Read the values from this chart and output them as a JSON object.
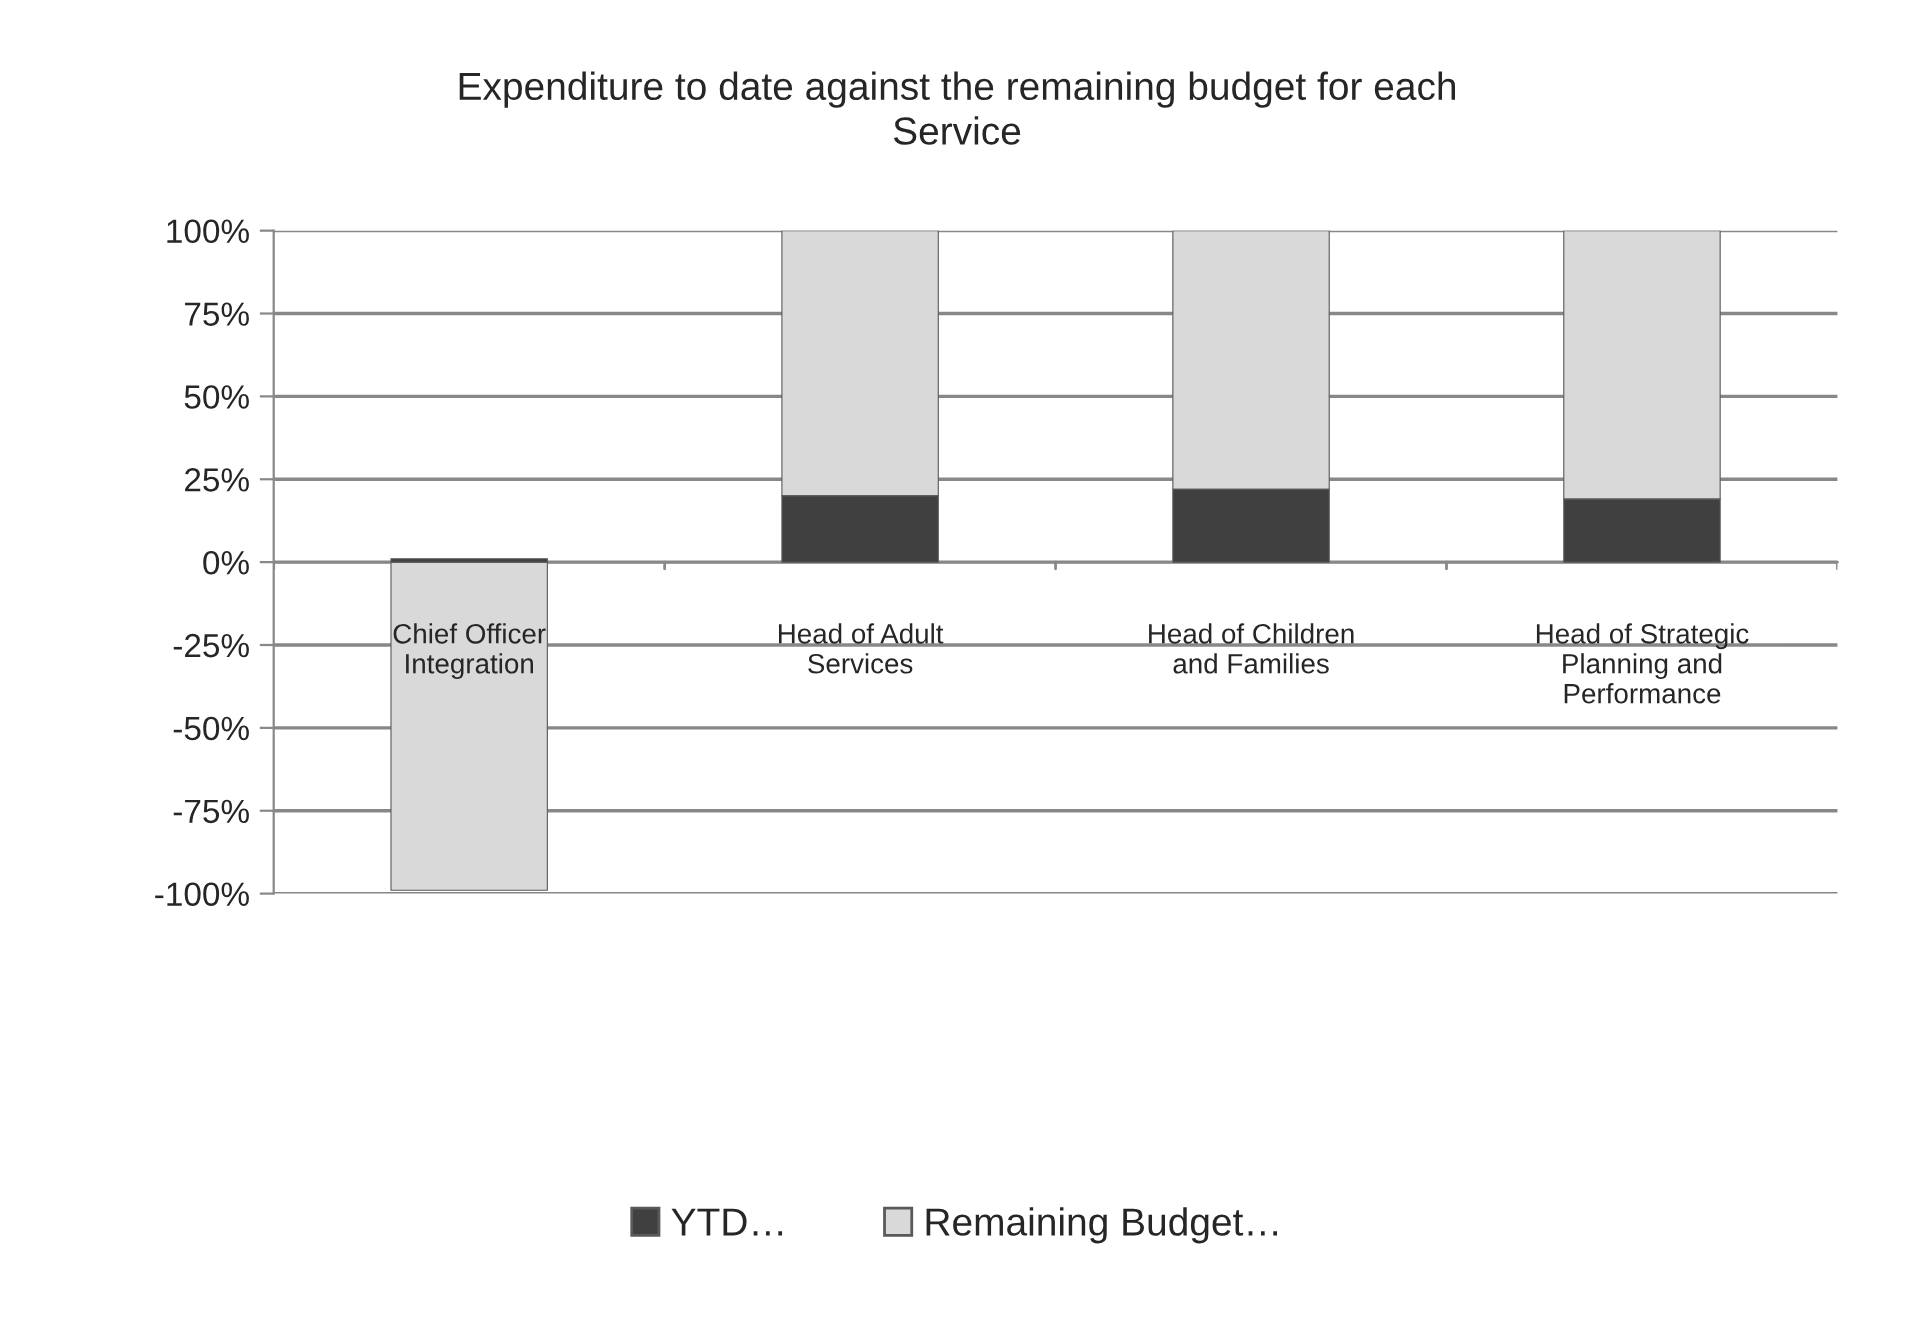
{
  "chart_data": {
    "type": "bar",
    "title": "Expenditure to date against the remaining budget for each Service",
    "categories": [
      "Chief Officer Integration",
      "Head of Adult Services",
      "Head of Children and Families",
      "Head of Strategic Planning and Performance"
    ],
    "series": [
      {
        "name": "YTD…",
        "color": "#404040",
        "values": [
          1,
          20,
          22,
          19
        ]
      },
      {
        "name": "Remaining Budget…",
        "color": "#d9d9d9",
        "values": [
          -99,
          80,
          78,
          81
        ]
      }
    ],
    "stacked": true,
    "ylim": [
      -100,
      100
    ],
    "yticks": [
      {
        "value": -100,
        "label": "-100%"
      },
      {
        "value": -75,
        "label": "-75%"
      },
      {
        "value": -50,
        "label": "-50%"
      },
      {
        "value": -25,
        "label": "-25%"
      },
      {
        "value": 0,
        "label": "0%"
      },
      {
        "value": 25,
        "label": "25%"
      },
      {
        "value": 50,
        "label": "50%"
      },
      {
        "value": 75,
        "label": "75%"
      },
      {
        "value": 100,
        "label": "100%"
      }
    ],
    "grid": "y",
    "legend": "bottom"
  }
}
